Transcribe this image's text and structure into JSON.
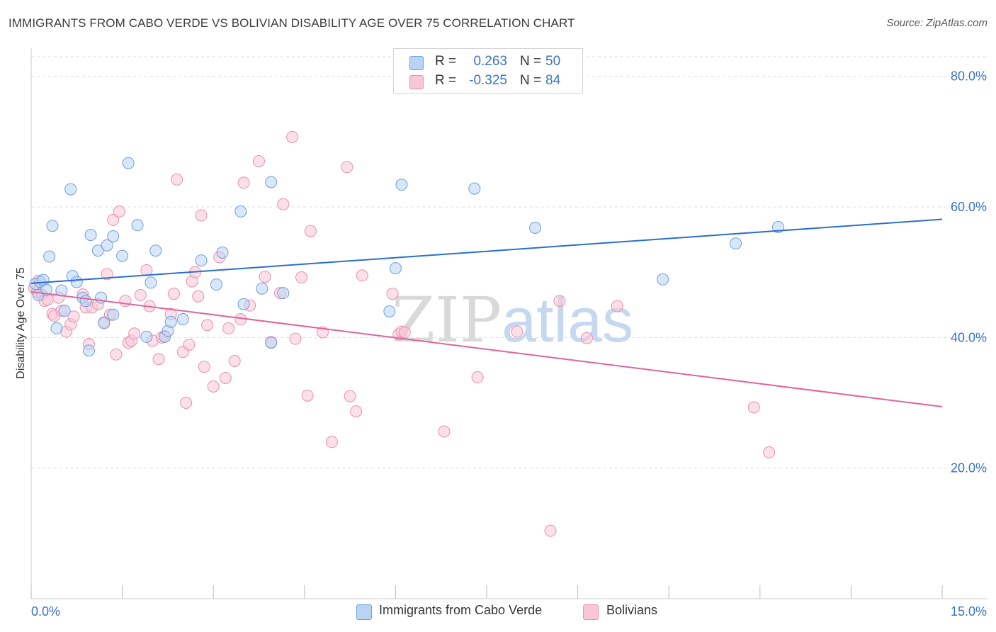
{
  "title": "IMMIGRANTS FROM CABO VERDE VS BOLIVIAN DISABILITY AGE OVER 75 CORRELATION CHART",
  "source": "Source: ZipAtlas.com",
  "watermark": {
    "zip": "ZIP",
    "atlas": "atlas"
  },
  "legend": {
    "series1": {
      "r_label": "R =",
      "r_value": "0.263",
      "n_label": "N =",
      "n_value": "50"
    },
    "series2": {
      "r_label": "R =",
      "r_value": "-0.325",
      "n_label": "N =",
      "n_value": "84"
    }
  },
  "bottom_legend": {
    "series1": "Immigrants from Cabo Verde",
    "series2": "Bolivians"
  },
  "colors": {
    "series1_fill": "#b9d3f5",
    "series1_stroke": "#6f9fdc",
    "series1_line": "#2b6ecf",
    "series2_fill": "#f9c6d7",
    "series2_stroke": "#e98fae",
    "series2_line": "#e2649a",
    "axis_label": "#3a74c6",
    "grid": "#dddddd"
  },
  "chart_data": {
    "type": "scatter",
    "title": "IMMIGRANTS FROM CABO VERDE VS BOLIVIAN DISABILITY AGE OVER 75 CORRELATION CHART",
    "xlabel": "",
    "ylabel": "Disability Age Over 75",
    "xlim": [
      0,
      15
    ],
    "ylim": [
      0,
      83
    ],
    "x_tick_labels": [
      "0.0%",
      "15.0%"
    ],
    "y_ticks": [
      20,
      40,
      60,
      80
    ],
    "y_tick_labels": [
      "20.0%",
      "40.0%",
      "60.0%",
      "80.0%"
    ],
    "grid": true,
    "legend_position": "top-center",
    "series": [
      {
        "name": "Immigrants from Cabo Verde",
        "trend": {
          "x": [
            0,
            15
          ],
          "y": [
            48.3,
            58.1
          ]
        },
        "points": [
          [
            0.07,
            48.2
          ],
          [
            0.12,
            46.5
          ],
          [
            0.15,
            48.5
          ],
          [
            0.2,
            48.8
          ],
          [
            0.25,
            47.3
          ],
          [
            0.3,
            52.4
          ],
          [
            0.35,
            57.1
          ],
          [
            0.42,
            41.4
          ],
          [
            0.5,
            47.2
          ],
          [
            0.55,
            44.1
          ],
          [
            0.65,
            62.7
          ],
          [
            0.68,
            49.4
          ],
          [
            0.75,
            48.5
          ],
          [
            0.85,
            46.1
          ],
          [
            0.9,
            45.6
          ],
          [
            0.95,
            38.0
          ],
          [
            0.98,
            55.7
          ],
          [
            1.1,
            53.3
          ],
          [
            1.15,
            46.1
          ],
          [
            1.2,
            42.2
          ],
          [
            1.25,
            54.1
          ],
          [
            1.35,
            55.5
          ],
          [
            1.35,
            43.5
          ],
          [
            1.5,
            52.5
          ],
          [
            1.6,
            66.7
          ],
          [
            1.75,
            57.2
          ],
          [
            1.9,
            40.1
          ],
          [
            1.97,
            48.4
          ],
          [
            2.05,
            53.3
          ],
          [
            2.2,
            40.1
          ],
          [
            2.25,
            41.0
          ],
          [
            2.3,
            42.4
          ],
          [
            2.5,
            42.8
          ],
          [
            2.8,
            51.8
          ],
          [
            3.05,
            48.1
          ],
          [
            3.15,
            53.0
          ],
          [
            3.45,
            59.3
          ],
          [
            3.5,
            45.1
          ],
          [
            3.8,
            47.5
          ],
          [
            3.95,
            63.8
          ],
          [
            3.95,
            39.2
          ],
          [
            4.15,
            46.8
          ],
          [
            5.9,
            44.0
          ],
          [
            6.0,
            50.6
          ],
          [
            6.1,
            63.4
          ],
          [
            7.3,
            62.8
          ],
          [
            8.3,
            56.8
          ],
          [
            10.4,
            48.9
          ],
          [
            11.6,
            54.4
          ],
          [
            12.3,
            56.9
          ]
        ]
      },
      {
        "name": "Bolivians",
        "trend": {
          "x": [
            0,
            15
          ],
          "y": [
            47.0,
            29.4
          ]
        },
        "points": [
          [
            0.05,
            47.6
          ],
          [
            0.1,
            47.0
          ],
          [
            0.12,
            48.7
          ],
          [
            0.18,
            46.5
          ],
          [
            0.22,
            45.6
          ],
          [
            0.27,
            45.8
          ],
          [
            0.35,
            43.6
          ],
          [
            0.38,
            43.3
          ],
          [
            0.45,
            46.1
          ],
          [
            0.5,
            44.1
          ],
          [
            0.58,
            40.9
          ],
          [
            0.65,
            42.0
          ],
          [
            0.7,
            43.2
          ],
          [
            0.85,
            46.6
          ],
          [
            0.9,
            44.6
          ],
          [
            0.95,
            39.0
          ],
          [
            1.0,
            44.6
          ],
          [
            1.1,
            45.1
          ],
          [
            1.2,
            42.3
          ],
          [
            1.25,
            49.7
          ],
          [
            1.3,
            43.5
          ],
          [
            1.35,
            58.0
          ],
          [
            1.4,
            37.4
          ],
          [
            1.45,
            59.3
          ],
          [
            1.55,
            45.6
          ],
          [
            1.6,
            39.2
          ],
          [
            1.65,
            39.5
          ],
          [
            1.7,
            40.6
          ],
          [
            1.8,
            46.5
          ],
          [
            1.9,
            50.3
          ],
          [
            1.95,
            44.8
          ],
          [
            2.0,
            39.5
          ],
          [
            2.1,
            36.7
          ],
          [
            2.15,
            40.0
          ],
          [
            2.2,
            40.2
          ],
          [
            2.3,
            43.6
          ],
          [
            2.35,
            46.7
          ],
          [
            2.4,
            64.2
          ],
          [
            2.5,
            37.8
          ],
          [
            2.55,
            30.0
          ],
          [
            2.6,
            38.9
          ],
          [
            2.65,
            48.6
          ],
          [
            2.7,
            50.0
          ],
          [
            2.75,
            46.3
          ],
          [
            2.8,
            58.7
          ],
          [
            2.85,
            35.5
          ],
          [
            2.9,
            41.9
          ],
          [
            3.0,
            32.5
          ],
          [
            3.1,
            52.3
          ],
          [
            3.2,
            33.8
          ],
          [
            3.25,
            41.4
          ],
          [
            3.35,
            36.4
          ],
          [
            3.45,
            42.8
          ],
          [
            3.5,
            63.7
          ],
          [
            3.6,
            44.9
          ],
          [
            3.75,
            67.0
          ],
          [
            3.85,
            49.3
          ],
          [
            3.95,
            39.3
          ],
          [
            4.1,
            46.8
          ],
          [
            4.15,
            60.4
          ],
          [
            4.3,
            70.7
          ],
          [
            4.35,
            39.8
          ],
          [
            4.45,
            49.2
          ],
          [
            4.55,
            31.1
          ],
          [
            4.6,
            56.3
          ],
          [
            4.8,
            40.8
          ],
          [
            4.95,
            24.0
          ],
          [
            5.2,
            66.1
          ],
          [
            5.25,
            31.0
          ],
          [
            5.35,
            28.7
          ],
          [
            5.45,
            49.5
          ],
          [
            5.95,
            46.7
          ],
          [
            6.05,
            40.5
          ],
          [
            6.1,
            40.9
          ],
          [
            6.15,
            40.8
          ],
          [
            6.8,
            25.6
          ],
          [
            7.35,
            33.9
          ],
          [
            8.0,
            40.9
          ],
          [
            8.55,
            10.4
          ],
          [
            8.7,
            45.6
          ],
          [
            9.15,
            39.9
          ],
          [
            9.65,
            44.8
          ],
          [
            11.9,
            29.3
          ],
          [
            12.15,
            22.4
          ]
        ]
      }
    ]
  }
}
